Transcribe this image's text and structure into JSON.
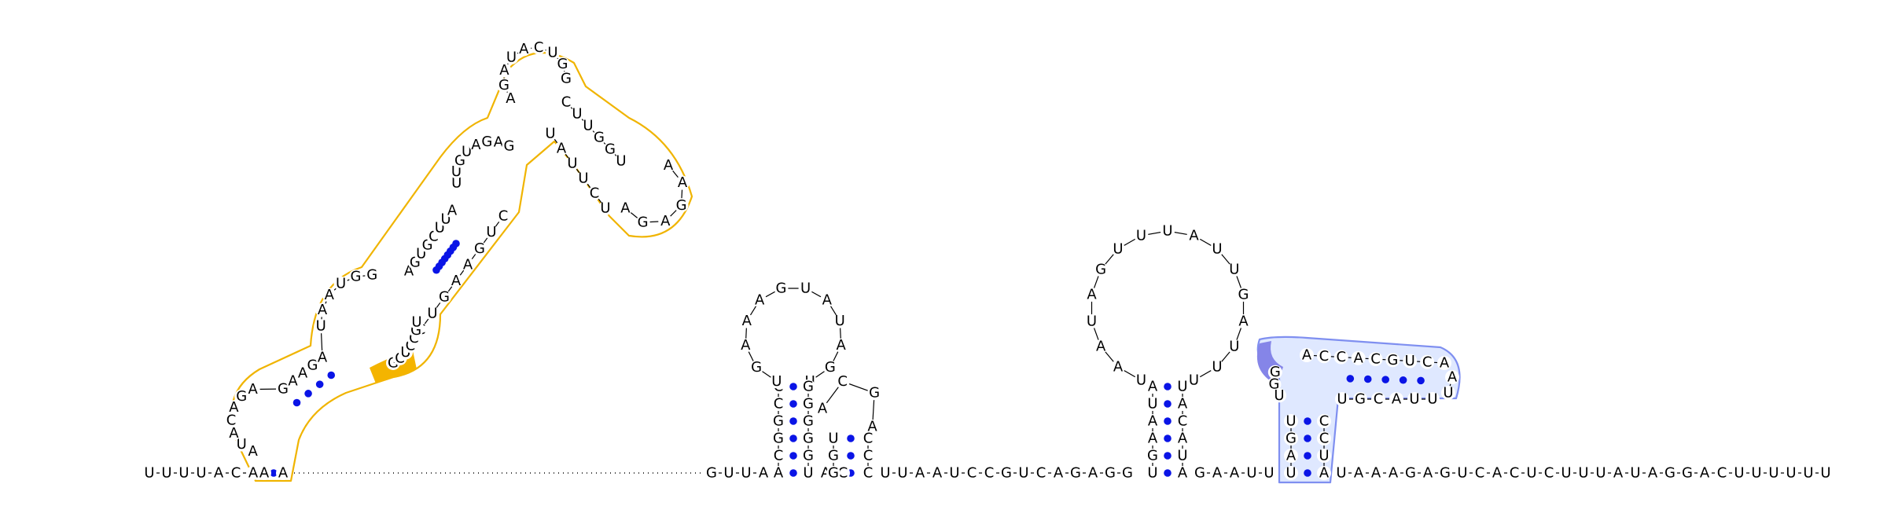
{
  "diagram": {
    "type": "rna-secondary-structure",
    "colors": {
      "base_pair_dot": "#0a14e6",
      "highlight_orange": "#f0b400",
      "highlight_blue_fill": "#dfe8ff",
      "highlight_blue_stroke": "#7f8ff0",
      "highlight_blue_dark": "#8585e8"
    },
    "segments": {
      "five_prime_tail": "UUUUACA",
      "gap_dots": 24,
      "stem_a_left": "GUUA",
      "hairpin1_stem_left": "ACGGCC",
      "hairpin1_loop": "UGAAAGUAUAGU",
      "hairpin1_stem_right": "GGGGGU",
      "linker1": "AC",
      "hairpin2_left": "GGU",
      "hairpin2_loop": "ACGA",
      "hairpin2_right": "CCC",
      "linker2": "UUAAUCCGUCAGAGG",
      "hairpin3_stem_left": "UGAAUA",
      "hairpin3_loop": "UAAUAGUUUAUUGAUUU",
      "hairpin3_stem_right": "UACAUA",
      "linker3": "GAAUU",
      "pk_stem_left": "UAGU",
      "pk_loop5": "GGU",
      "pk_top": "ACCACGUCA",
      "pk_turn": "AU",
      "pk_bottom": "UUACGU",
      "pk_stem_right": "CCUA",
      "three_prime_tail": "UAAAGAGUCACUCUUUAUAGGACUUUUUU",
      "domain_left": "AUACAGAGAAGAUAAUGG",
      "domain_top_left": "AGUGCUUA",
      "domain_loop_a": "UUGUAGAGAGAUACUGGCUUGGUAAGAGA",
      "domain_right": "UCUUAUCUGAAGUCC",
      "domain_inner": "GCUCCGU"
    }
  }
}
